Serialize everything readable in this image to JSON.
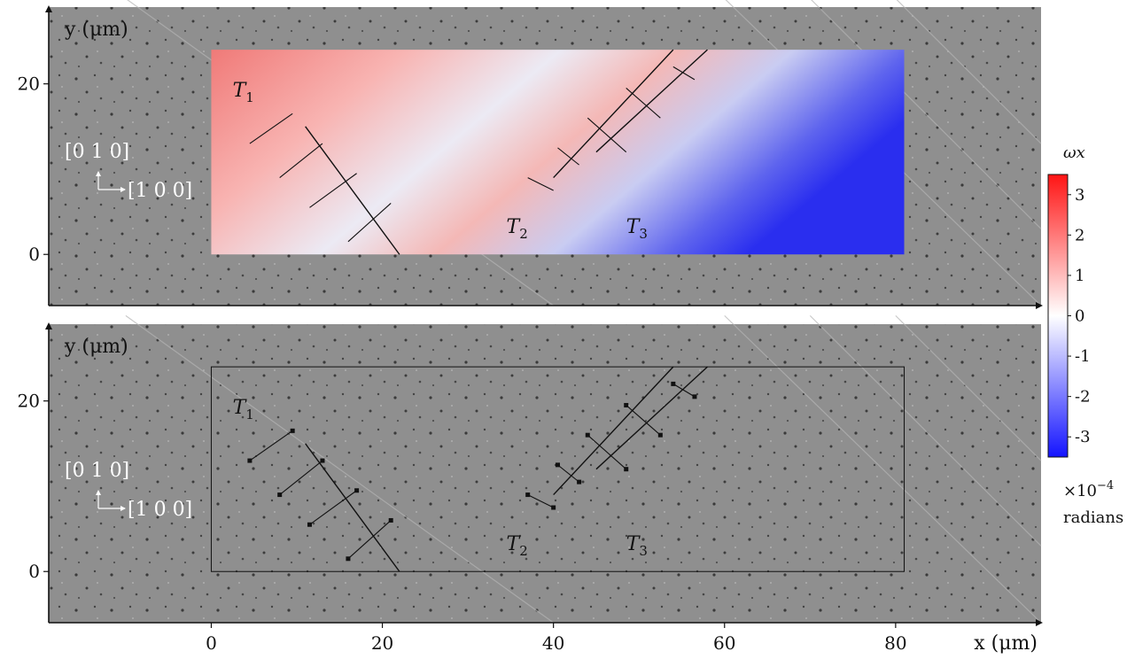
{
  "chart_data": [
    {
      "type": "heatmap",
      "title": "",
      "xlabel": "",
      "ylabel": "y (μm)",
      "xlim": [
        -19,
        97
      ],
      "ylim": [
        -6,
        29
      ],
      "yticks": [
        0,
        20
      ],
      "map_extent": {
        "x": [
          0,
          81
        ],
        "y": [
          0,
          24
        ]
      },
      "annotations": [
        "T1",
        "T2",
        "T3"
      ],
      "directions": [
        "[0 1 0]",
        "[1 0 0]"
      ],
      "colorbar": {
        "label": "ωx",
        "ticks": [
          3,
          2,
          1,
          0,
          -1,
          -2,
          -3
        ],
        "tick_labels": [
          "3",
          "2",
          "1",
          "0",
          "-1",
          "-2",
          "-3"
        ],
        "range": [
          -3.5,
          3.5
        ],
        "multiplier": "×10",
        "exponent": "−4",
        "units": "radians",
        "colors": {
          "low": "#1414ff",
          "mid": "#ffffff",
          "high": "#ff1414"
        }
      },
      "grid": false
    },
    {
      "type": "heatmap",
      "title": "",
      "xlabel": "x (μm)",
      "ylabel": "y (μm)",
      "xlim": [
        -19,
        97
      ],
      "ylim": [
        -6,
        29
      ],
      "xticks": [
        0,
        20,
        40,
        60,
        80
      ],
      "yticks": [
        0,
        20
      ],
      "map_extent": {
        "x": [
          0,
          81
        ],
        "y": [
          0,
          24
        ]
      },
      "annotations": [
        "T1",
        "T2",
        "T3"
      ],
      "directions": [
        "[0 1 0]",
        "[1 0 0]"
      ],
      "grid": false
    }
  ],
  "annotations_subscripts": [
    "1",
    "2",
    "3"
  ],
  "colors": {
    "background_gray": "#8e8e8e",
    "axis": "#111111"
  }
}
